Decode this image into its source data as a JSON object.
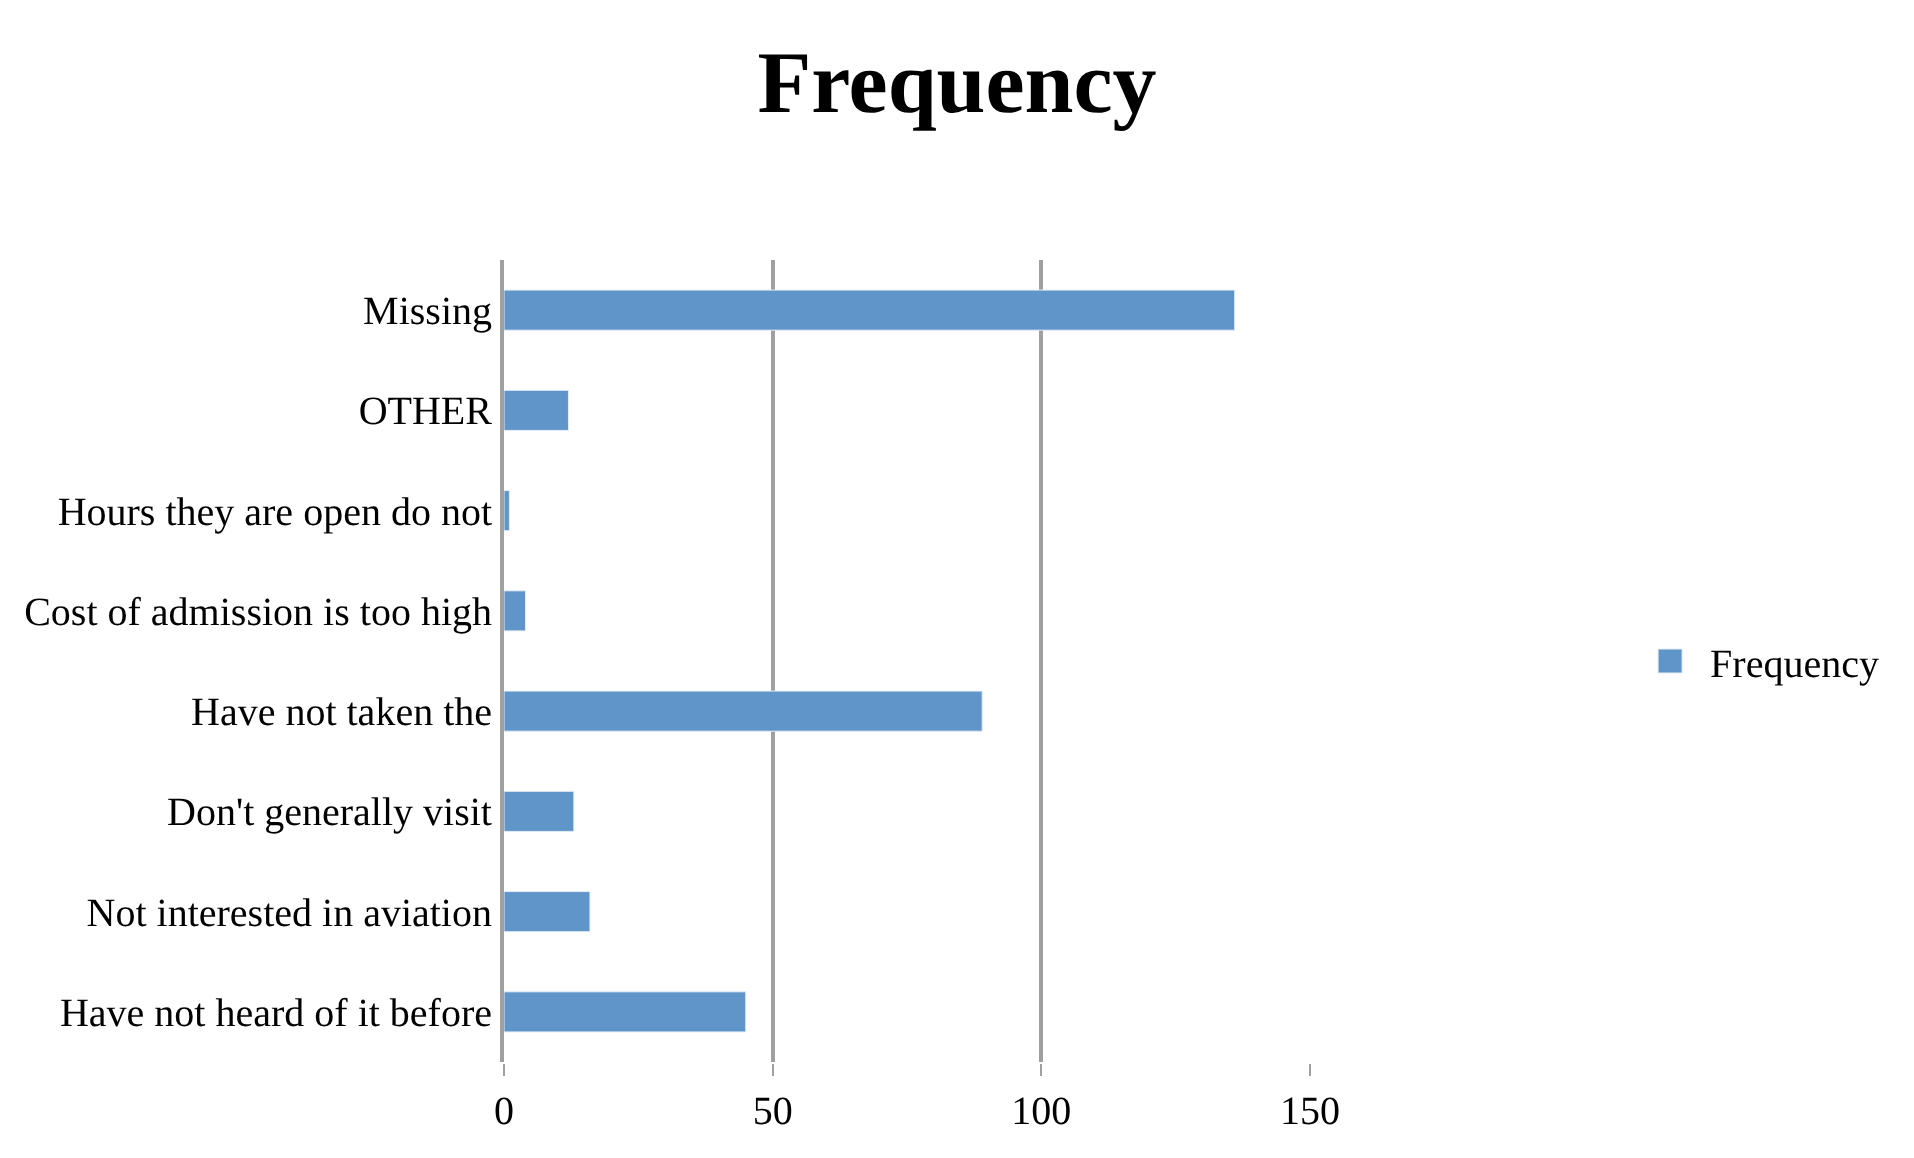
{
  "chart_data": {
    "type": "bar",
    "orientation": "horizontal",
    "title": "Frequency",
    "categories": [
      "Missing",
      "OTHER",
      "Hours they are open do not",
      "Cost of admission is too high",
      "Have not taken the",
      "Don't generally visit",
      "Not interested in aviation",
      "Have not heard of it before"
    ],
    "series": [
      {
        "name": "Frequency",
        "color": "#5f95c9",
        "values": [
          136,
          12,
          1,
          4,
          89,
          13,
          16,
          45
        ]
      }
    ],
    "xlim": [
      0,
      150
    ],
    "xticks": [
      0,
      50,
      100,
      150
    ],
    "grid": "x",
    "legend": "right"
  }
}
